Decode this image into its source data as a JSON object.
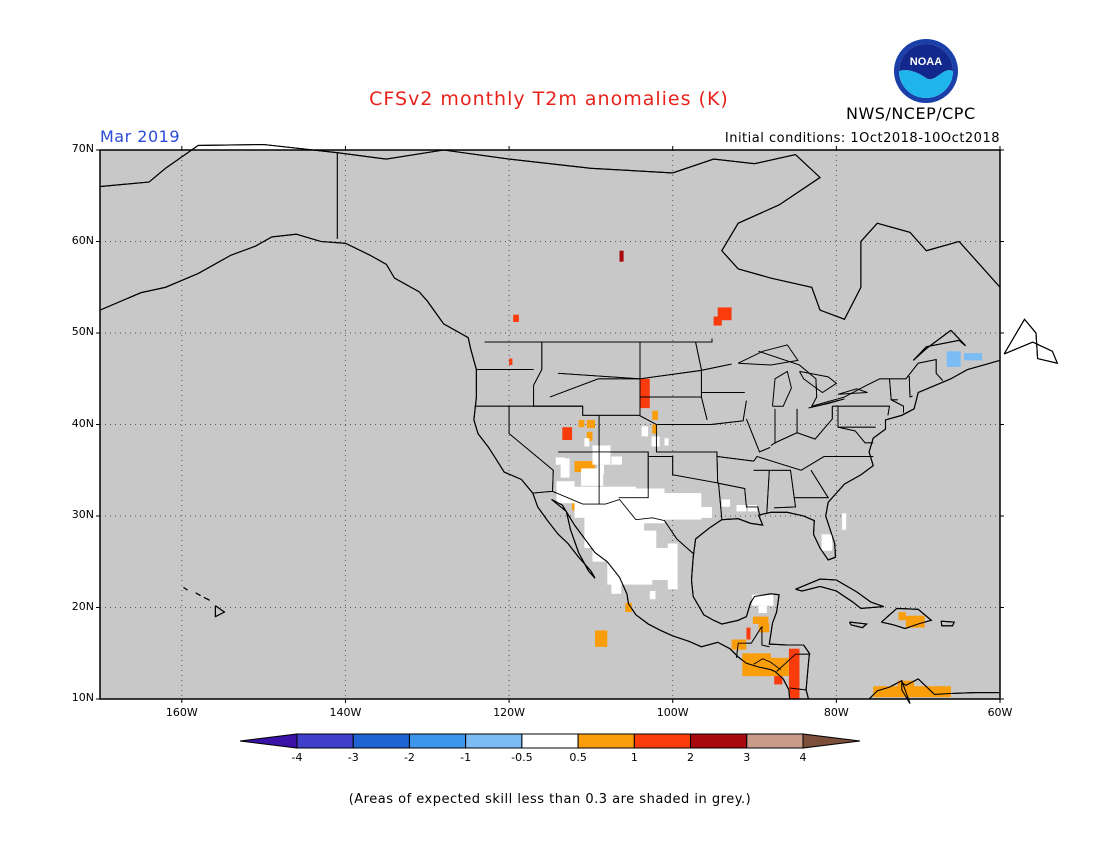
{
  "header": {
    "title": "CFSv2 monthly T2m anomalies (K)",
    "month": "Mar 2019",
    "initial_conditions": "Initial conditions: 1Oct2018-10Oct2018",
    "agency": "NWS/NCEP/CPC",
    "logo_text": "NOAA"
  },
  "axes": {
    "lat_labels": [
      "70N",
      "60N",
      "50N",
      "40N",
      "30N",
      "20N",
      "10N"
    ],
    "lon_labels": [
      "160W",
      "140W",
      "120W",
      "100W",
      "80W",
      "60W"
    ],
    "lon_range": [
      -170,
      -60
    ],
    "lat_range": [
      10,
      70
    ]
  },
  "colorbar": {
    "tick_labels": [
      "-4",
      "-3",
      "-2",
      "-1",
      "-0.5",
      "0.5",
      "1",
      "2",
      "3",
      "4"
    ],
    "colors": [
      "#3a12a8",
      "#3f3fcc",
      "#1f64d2",
      "#3c96ec",
      "#7bbcf4",
      "#ffffff",
      "#f99d0b",
      "#fa3c0c",
      "#a8090e",
      "#c99c8a",
      "#7b4f3a"
    ]
  },
  "map_colors": {
    "background": "#c8c8c8",
    "coast": "#000000",
    "grid": "#555555"
  },
  "footnote": "(Areas of expected skill less than 0.3 are shaded in grey.)"
}
